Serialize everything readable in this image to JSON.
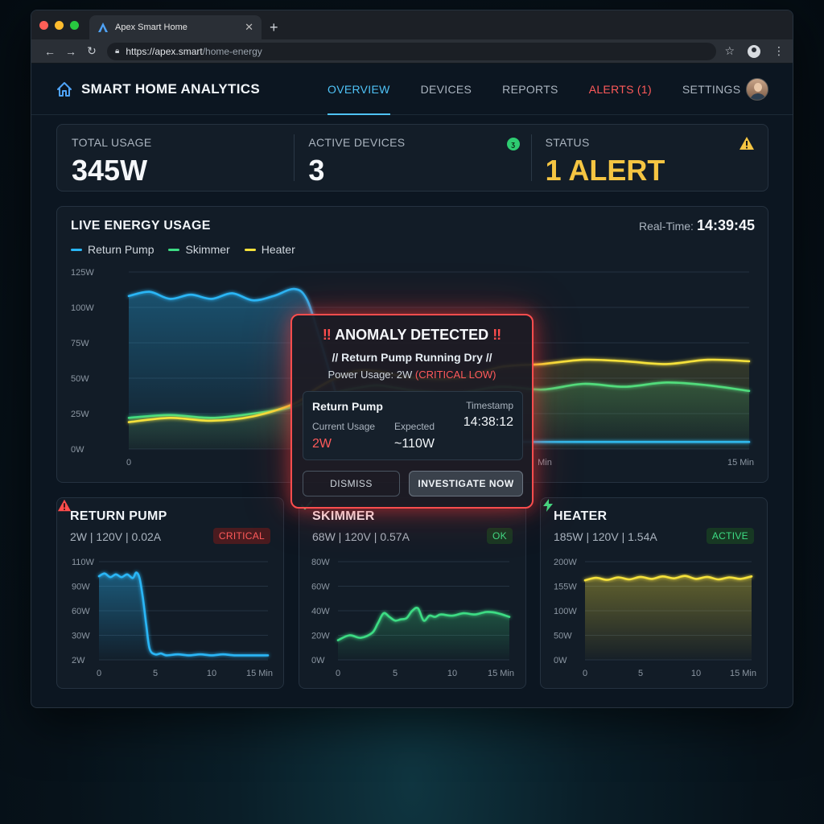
{
  "browser": {
    "tab_title": "Apex Smart Home",
    "url_host": "https://apex.smart",
    "url_path": "/home-energy"
  },
  "header": {
    "brand": "SMART HOME ANALYTICS",
    "nav": [
      "OVERVIEW",
      "DEVICES",
      "REPORTS",
      "ALERTS (1)",
      "SETTINGS"
    ],
    "active_nav": "OVERVIEW"
  },
  "stats": {
    "total_label": "TOTAL USAGE",
    "total_value": "345W",
    "devices_label": "ACTIVE DEVICES",
    "devices_value": "3",
    "status_label": "STATUS",
    "status_value": "1 ALERT"
  },
  "live": {
    "title": "LIVE ENERGY USAGE",
    "realtime_label": "Real-Time:",
    "realtime_value": "14:39:45"
  },
  "colors": {
    "return_pump": "#29b6f6",
    "skimmer": "#3ddc84",
    "heater": "#f5e13b",
    "critical": "#ff4d4d"
  },
  "chart_data": [
    {
      "type": "line",
      "title": "LIVE ENERGY USAGE",
      "y_ticks": [
        "0W",
        "25W",
        "50W",
        "75W",
        "100W",
        "125W"
      ],
      "x_ticks": [
        "0",
        "Min",
        "15 Min"
      ],
      "ylim": [
        0,
        125
      ],
      "xlim": [
        0,
        15
      ],
      "legend_position": "top-left",
      "grid": true,
      "series": [
        {
          "name": "Return Pump",
          "color": "#29b6f6",
          "x": [
            0,
            0.5,
            1,
            1.5,
            2,
            2.5,
            3,
            3.5,
            4,
            4.3,
            4.6,
            5,
            5.3,
            5.6,
            6,
            6.5,
            7,
            8,
            9,
            10,
            11,
            12,
            13,
            14,
            15
          ],
          "y": [
            108,
            111,
            106,
            109,
            106,
            110,
            105,
            108,
            113,
            106,
            80,
            40,
            15,
            8,
            6,
            7,
            5,
            5,
            5,
            5,
            5,
            5,
            5,
            5,
            5
          ]
        },
        {
          "name": "Skimmer",
          "color": "#3ddc84",
          "x": [
            0,
            1,
            2,
            3,
            4,
            4.5,
            5,
            5.5,
            6,
            6.5,
            7,
            8,
            9,
            10,
            11,
            12,
            13,
            14,
            15
          ],
          "y": [
            22,
            24,
            22,
            25,
            30,
            36,
            40,
            43,
            45,
            43,
            41,
            40,
            44,
            42,
            46,
            44,
            47,
            45,
            41
          ]
        },
        {
          "name": "Heater",
          "color": "#f5e13b",
          "x": [
            0,
            1,
            2,
            3,
            4,
            4.5,
            5,
            5.5,
            6,
            6.5,
            7,
            8,
            9,
            10,
            11,
            12,
            13,
            14,
            15
          ],
          "y": [
            19,
            22,
            20,
            23,
            32,
            42,
            50,
            55,
            55,
            52,
            50,
            50,
            58,
            60,
            63,
            62,
            60,
            63,
            62
          ]
        }
      ]
    },
    {
      "type": "area",
      "title": "RETURN PUMP",
      "y_ticks": [
        "2W",
        "30W",
        "60W",
        "90W",
        "110W"
      ],
      "x_ticks": [
        "0",
        "5",
        "10",
        "15 Min"
      ],
      "ylim": [
        2,
        110
      ],
      "xlim": [
        0,
        15
      ],
      "series": [
        {
          "name": "Return Pump",
          "color": "#29b6f6",
          "x": [
            0,
            0.5,
            1,
            1.5,
            2,
            2.5,
            3,
            3.3,
            3.6,
            3.9,
            4.2,
            4.5,
            5,
            5.5,
            6,
            7,
            8,
            9,
            10,
            11,
            12,
            13,
            14,
            15
          ],
          "y": [
            94,
            97,
            93,
            96,
            93,
            96,
            92,
            98,
            92,
            70,
            40,
            14,
            8,
            9,
            7,
            8,
            7,
            8,
            7,
            8,
            7,
            7,
            7,
            7
          ]
        }
      ]
    },
    {
      "type": "area",
      "title": "SKIMMER",
      "y_ticks": [
        "0W",
        "20W",
        "40W",
        "60W",
        "80W"
      ],
      "x_ticks": [
        "0",
        "5",
        "10",
        "15 Min"
      ],
      "ylim": [
        0,
        80
      ],
      "xlim": [
        0,
        15
      ],
      "series": [
        {
          "name": "Skimmer",
          "color": "#3ddc84",
          "x": [
            0,
            1,
            2,
            3,
            3.5,
            4,
            4.5,
            5,
            5.5,
            6,
            6.5,
            7,
            7.5,
            8,
            8.5,
            9,
            10,
            11,
            12,
            13,
            14,
            15
          ],
          "y": [
            16,
            20,
            18,
            22,
            30,
            38,
            35,
            32,
            33,
            34,
            40,
            42,
            32,
            36,
            35,
            37,
            36,
            38,
            37,
            39,
            38,
            35
          ]
        }
      ]
    },
    {
      "type": "area",
      "title": "HEATER",
      "y_ticks": [
        "0W",
        "50W",
        "100W",
        "155W",
        "200W"
      ],
      "x_ticks": [
        "0",
        "5",
        "10",
        "15 Min"
      ],
      "ylim": [
        0,
        200
      ],
      "xlim": [
        0,
        15
      ],
      "series": [
        {
          "name": "Heater",
          "color": "#f5e13b",
          "x": [
            0,
            1,
            2,
            3,
            4,
            5,
            6,
            7,
            8,
            9,
            10,
            11,
            12,
            13,
            14,
            15
          ],
          "y": [
            162,
            167,
            163,
            168,
            164,
            169,
            165,
            170,
            166,
            171,
            165,
            169,
            164,
            168,
            165,
            170
          ]
        }
      ]
    }
  ],
  "devices": [
    {
      "name": "RETURN PUMP",
      "specs": "2W | 120V | 0.02A",
      "badge": "CRITICAL"
    },
    {
      "name": "SKIMMER",
      "specs": "68W | 120V | 0.57A",
      "badge": "OK"
    },
    {
      "name": "HEATER",
      "specs": "185W | 120V | 1.54A",
      "badge": "ACTIVE"
    }
  ],
  "modal": {
    "bang": "‼",
    "title": "ANOMALY DETECTED",
    "subtitle": "// Return Pump Running Dry //",
    "power_label": "Power Usage: 2W",
    "power_status": "(CRITICAL LOW)",
    "device": "Return Pump",
    "current_label": "Current Usage",
    "current_value": "2W",
    "expected_label": "Expected",
    "expected_value": "~110W",
    "timestamp_label": "Timestamp",
    "timestamp_value": "14:38:12",
    "dismiss": "DISMISS",
    "investigate": "INVESTIGATE NOW"
  }
}
